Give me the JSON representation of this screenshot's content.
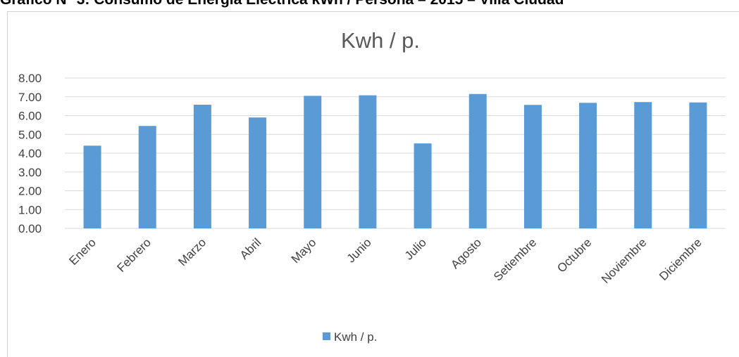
{
  "heading": "Gráfico N° 3: Consumo de Energía Eléctrica kWh / Persona – 2015 – Villa Ciudad",
  "chart_data": {
    "type": "bar",
    "title": "Kwh / p.",
    "categories": [
      "Enero",
      "Febrero",
      "Marzo",
      "Abril",
      "Mayo",
      "Junio",
      "Julio",
      "Agosto",
      "Setiembre",
      "Octubre",
      "Noviembre",
      "Diciembre"
    ],
    "series": [
      {
        "name": "Kwh / p.",
        "values": [
          4.4,
          5.45,
          6.58,
          5.9,
          7.05,
          7.08,
          4.52,
          7.15,
          6.57,
          6.68,
          6.72,
          6.7
        ],
        "color": "#5b9bd5"
      }
    ],
    "yticks": [
      "0.00",
      "1.00",
      "2.00",
      "3.00",
      "4.00",
      "5.00",
      "6.00",
      "7.00",
      "8.00"
    ],
    "ylim": [
      0,
      8
    ],
    "grid": true,
    "legend_position": "bottom",
    "gridline_color": "#d9d9d9"
  }
}
